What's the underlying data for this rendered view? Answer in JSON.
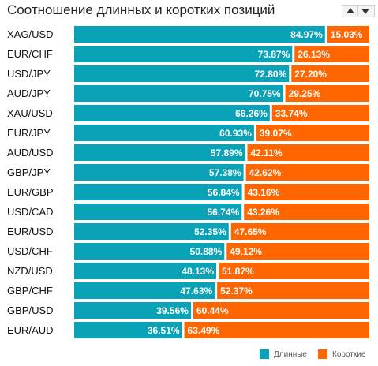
{
  "title": "Соотношение длинных и коротких позиций",
  "colors": {
    "long": "#0aa2b7",
    "short": "#ff6600",
    "gap": "#ffffff"
  },
  "legend": {
    "long": "Длинные",
    "short": "Короткие"
  },
  "chart_data": {
    "type": "bar",
    "orientation": "horizontal-stacked-100",
    "categories": [
      "XAG/USD",
      "EUR/CHF",
      "USD/JPY",
      "AUD/JPY",
      "XAU/USD",
      "EUR/JPY",
      "AUD/USD",
      "GBP/JPY",
      "EUR/GBP",
      "USD/CAD",
      "EUR/USD",
      "USD/CHF",
      "NZD/USD",
      "GBP/CHF",
      "GBP/USD",
      "EUR/AUD"
    ],
    "series": [
      {
        "name": "Длинные",
        "values": [
          84.97,
          73.87,
          72.8,
          70.75,
          66.26,
          60.93,
          57.89,
          57.38,
          56.84,
          56.74,
          52.35,
          50.88,
          48.13,
          47.63,
          39.56,
          36.51
        ],
        "labels": [
          "84.97%",
          "73.87%",
          "72.80%",
          "70.75%",
          "66.26%",
          "60.93%",
          "57.89%",
          "57.38%",
          "56.84%",
          "56.74%",
          "52.35%",
          "50.88%",
          "48.13%",
          "47.63%",
          "39.56%",
          "36.51%"
        ]
      },
      {
        "name": "Короткие",
        "values": [
          15.03,
          26.13,
          27.2,
          29.25,
          33.74,
          39.07,
          42.11,
          42.62,
          43.16,
          43.26,
          47.65,
          49.12,
          51.87,
          52.37,
          60.44,
          63.49
        ],
        "labels": [
          "15.03%",
          "26.13%",
          "27.20%",
          "29.25%",
          "33.74%",
          "39.07%",
          "42.11%",
          "42.62%",
          "43.16%",
          "43.26%",
          "47.65%",
          "49.12%",
          "51.87%",
          "52.37%",
          "60.44%",
          "63.49%"
        ]
      }
    ],
    "xlim": [
      0,
      100
    ],
    "legend_position": "bottom-right",
    "grid": false
  }
}
